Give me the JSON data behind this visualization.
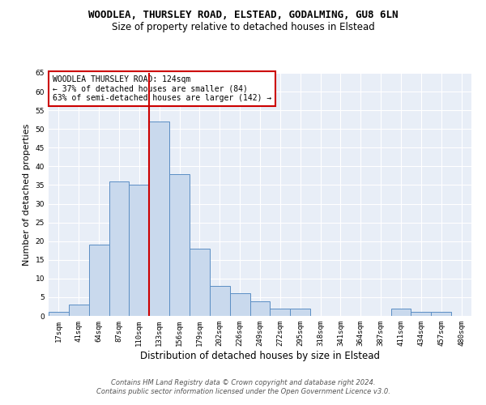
{
  "title_line1": "WOODLEA, THURSLEY ROAD, ELSTEAD, GODALMING, GU8 6LN",
  "title_line2": "Size of property relative to detached houses in Elstead",
  "xlabel": "Distribution of detached houses by size in Elstead",
  "ylabel": "Number of detached properties",
  "bar_labels": [
    "17sqm",
    "41sqm",
    "64sqm",
    "87sqm",
    "110sqm",
    "133sqm",
    "156sqm",
    "179sqm",
    "202sqm",
    "226sqm",
    "249sqm",
    "272sqm",
    "295sqm",
    "318sqm",
    "341sqm",
    "364sqm",
    "387sqm",
    "411sqm",
    "434sqm",
    "457sqm",
    "480sqm"
  ],
  "bar_values": [
    1,
    3,
    19,
    36,
    35,
    52,
    38,
    18,
    8,
    6,
    4,
    2,
    2,
    0,
    0,
    0,
    0,
    2,
    1,
    1,
    0
  ],
  "bar_color": "#c9d9ed",
  "bar_edgecolor": "#5b8ec4",
  "background_color": "#e8eef7",
  "vline_color": "#cc0000",
  "annotation_text": "WOODLEA THURSLEY ROAD: 124sqm\n← 37% of detached houses are smaller (84)\n63% of semi-detached houses are larger (142) →",
  "annotation_box_color": "white",
  "annotation_box_edgecolor": "#cc0000",
  "ylim": [
    0,
    65
  ],
  "yticks": [
    0,
    5,
    10,
    15,
    20,
    25,
    30,
    35,
    40,
    45,
    50,
    55,
    60,
    65
  ],
  "footer_line1": "Contains HM Land Registry data © Crown copyright and database right 2024.",
  "footer_line2": "Contains public sector information licensed under the Open Government Licence v3.0.",
  "title_fontsize": 9,
  "subtitle_fontsize": 8.5,
  "axis_label_fontsize": 8,
  "tick_fontsize": 6.5,
  "annotation_fontsize": 7,
  "footer_fontsize": 6
}
